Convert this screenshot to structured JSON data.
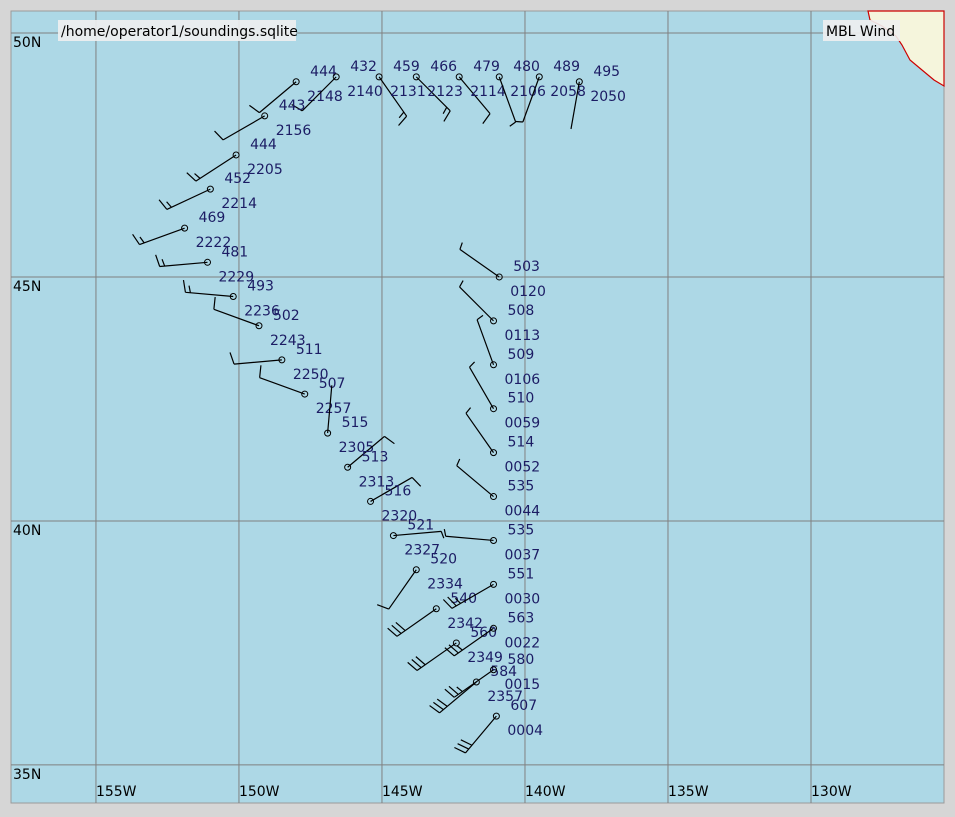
{
  "title": "/home/operator1/soundings.sqlite",
  "legend": "MBL Wind",
  "lon_range": [
    -157.97,
    -125.35
  ],
  "lat_range": [
    50.45,
    34.22
  ],
  "lat_lines": [
    {
      "value": 50,
      "label": "50N"
    },
    {
      "value": 45,
      "label": "45N"
    },
    {
      "value": 40,
      "label": "40N"
    },
    {
      "value": 35,
      "label": "35N"
    }
  ],
  "lon_lines": [
    {
      "value": -155,
      "label": "155W"
    },
    {
      "value": -150,
      "label": "150W"
    },
    {
      "value": -145,
      "label": "145W"
    },
    {
      "value": -140,
      "label": "140W"
    },
    {
      "value": -135,
      "label": "135W"
    },
    {
      "value": -130,
      "label": "130W"
    }
  ],
  "soundings": [
    {
      "lon": -148.0,
      "lat": 49.0,
      "value_label": "444",
      "time_label": "2148",
      "wind_dir": 230,
      "wind_speed": 10
    },
    {
      "lon": -146.6,
      "lat": 49.1,
      "value_label": "432",
      "time_label": "2140",
      "wind_dir": 225,
      "wind_speed": 10
    },
    {
      "lon": -145.1,
      "lat": 49.1,
      "value_label": "459",
      "time_label": "2131",
      "wind_dir": 145,
      "wind_speed": 15
    },
    {
      "lon": -143.8,
      "lat": 49.1,
      "value_label": "466",
      "time_label": "2123",
      "wind_dir": 135,
      "wind_speed": 15
    },
    {
      "lon": -142.3,
      "lat": 49.1,
      "value_label": "479",
      "time_label": "2114",
      "wind_dir": 140,
      "wind_speed": 10
    },
    {
      "lon": -140.9,
      "lat": 49.1,
      "value_label": "480",
      "time_label": "2106",
      "wind_dir": 160,
      "wind_speed": 5
    },
    {
      "lon": -139.5,
      "lat": 49.1,
      "value_label": "489",
      "time_label": "2058",
      "wind_dir": 200,
      "wind_speed": 5
    },
    {
      "lon": -138.1,
      "lat": 49.0,
      "value_label": "495",
      "time_label": "2050",
      "wind_dir": 190,
      "wind_speed": 0
    },
    {
      "lon": -149.1,
      "lat": 48.3,
      "value_label": "443",
      "time_label": "2156",
      "wind_dir": 240,
      "wind_speed": 10
    },
    {
      "lon": -150.1,
      "lat": 47.5,
      "value_label": "444",
      "time_label": "2205",
      "wind_dir": 237,
      "wind_speed": 15
    },
    {
      "lon": -151.0,
      "lat": 46.8,
      "value_label": "452",
      "time_label": "2214",
      "wind_dir": 245,
      "wind_speed": 15
    },
    {
      "lon": -151.9,
      "lat": 46.0,
      "value_label": "469",
      "time_label": "2222",
      "wind_dir": 250,
      "wind_speed": 15
    },
    {
      "lon": -151.1,
      "lat": 45.3,
      "value_label": "481",
      "time_label": "2229",
      "wind_dir": 265,
      "wind_speed": 15
    },
    {
      "lon": -150.2,
      "lat": 44.6,
      "value_label": "493",
      "time_label": "2236",
      "wind_dir": 275,
      "wind_speed": 15
    },
    {
      "lon": -149.3,
      "lat": 44.0,
      "value_label": "502",
      "time_label": "2243",
      "wind_dir": 290,
      "wind_speed": 10
    },
    {
      "lon": -148.5,
      "lat": 43.3,
      "value_label": "511",
      "time_label": "2250",
      "wind_dir": 265,
      "wind_speed": 10
    },
    {
      "lon": -147.7,
      "lat": 42.6,
      "value_label": "507",
      "time_label": "2257",
      "wind_dir": 290,
      "wind_speed": 10
    },
    {
      "lon": -146.9,
      "lat": 41.8,
      "value_label": "515",
      "time_label": "2305",
      "wind_dir": 5,
      "wind_speed": 0
    },
    {
      "lon": -146.2,
      "lat": 41.1,
      "value_label": "513",
      "time_label": "2313",
      "wind_dir": 50,
      "wind_speed": 10
    },
    {
      "lon": -145.4,
      "lat": 40.4,
      "value_label": "516",
      "time_label": "2320",
      "wind_dir": 60,
      "wind_speed": 10
    },
    {
      "lon": -144.6,
      "lat": 39.7,
      "value_label": "521",
      "time_label": "2327",
      "wind_dir": 85,
      "wind_speed": 5
    },
    {
      "lon": -143.8,
      "lat": 39.0,
      "value_label": "520",
      "time_label": "2334",
      "wind_dir": 215,
      "wind_speed": 10
    },
    {
      "lon": -143.1,
      "lat": 38.2,
      "value_label": "540",
      "time_label": "2342",
      "wind_dir": 235,
      "wind_speed": 30
    },
    {
      "lon": -142.4,
      "lat": 37.5,
      "value_label": "560",
      "time_label": "2349",
      "wind_dir": 235,
      "wind_speed": 30
    },
    {
      "lon": -141.7,
      "lat": 36.7,
      "value_label": "584",
      "time_label": "2357",
      "wind_dir": 230,
      "wind_speed": 30
    },
    {
      "lon": -141.0,
      "lat": 36.0,
      "value_label": "607",
      "time_label": "0004",
      "wind_dir": 220,
      "wind_speed": 30
    },
    {
      "lon": -140.9,
      "lat": 45.0,
      "value_label": "503",
      "time_label": "0120",
      "wind_dir": 305,
      "wind_speed": 5
    },
    {
      "lon": -141.1,
      "lat": 44.1,
      "value_label": "508",
      "time_label": "0113",
      "wind_dir": 315,
      "wind_speed": 5
    },
    {
      "lon": -141.1,
      "lat": 43.2,
      "value_label": "509",
      "time_label": "0106",
      "wind_dir": 340,
      "wind_speed": 5
    },
    {
      "lon": -141.1,
      "lat": 42.3,
      "value_label": "510",
      "time_label": "0059",
      "wind_dir": 330,
      "wind_speed": 5
    },
    {
      "lon": -141.1,
      "lat": 41.4,
      "value_label": "514",
      "time_label": "0052",
      "wind_dir": 325,
      "wind_speed": 5
    },
    {
      "lon": -141.1,
      "lat": 40.5,
      "value_label": "535",
      "time_label": "0044",
      "wind_dir": 310,
      "wind_speed": 5
    },
    {
      "lon": -141.1,
      "lat": 39.6,
      "value_label": "535",
      "time_label": "0037",
      "wind_dir": 275,
      "wind_speed": 5
    },
    {
      "lon": -141.1,
      "lat": 38.7,
      "value_label": "551",
      "time_label": "0030",
      "wind_dir": 240,
      "wind_speed": 25
    },
    {
      "lon": -141.1,
      "lat": 37.8,
      "value_label": "563",
      "time_label": "0022",
      "wind_dir": 235,
      "wind_speed": 25
    },
    {
      "lon": -141.1,
      "lat": 36.95,
      "value_label": "580",
      "time_label": "0015",
      "wind_dir": 235,
      "wind_speed": 25
    }
  ]
}
